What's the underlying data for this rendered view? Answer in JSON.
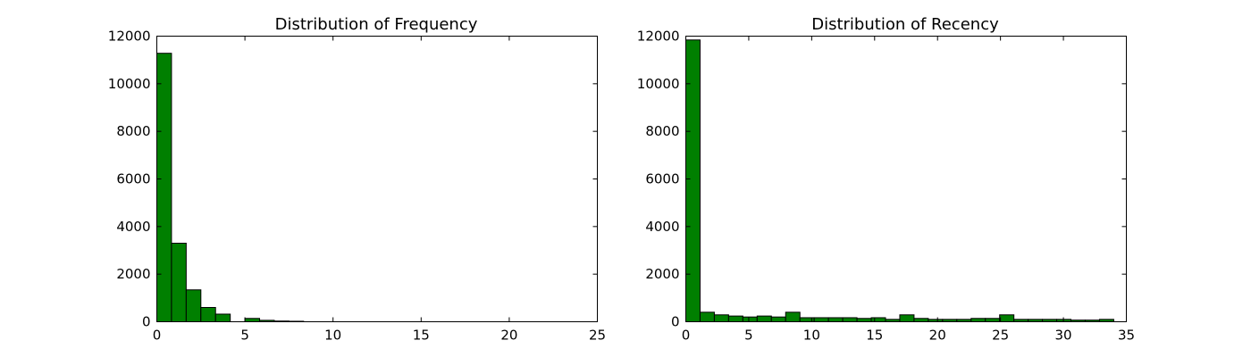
{
  "chart_data": [
    {
      "type": "bar",
      "title": "Distribution of Frequency",
      "xlabel": "",
      "ylabel": "",
      "xlim": [
        0,
        25
      ],
      "ylim": [
        0,
        12000
      ],
      "xticks": [
        0,
        5,
        10,
        15,
        20,
        25
      ],
      "yticks": [
        0,
        2000,
        4000,
        6000,
        8000,
        10000,
        12000
      ],
      "grid": false,
      "bar_color": "#007f00",
      "bins": [
        {
          "x0": 0.0,
          "x1": 0.833,
          "value": 11280
        },
        {
          "x0": 0.833,
          "x1": 1.667,
          "value": 3300
        },
        {
          "x0": 1.667,
          "x1": 2.5,
          "value": 1340
        },
        {
          "x0": 2.5,
          "x1": 3.333,
          "value": 600
        },
        {
          "x0": 3.333,
          "x1": 4.167,
          "value": 320
        },
        {
          "x0": 4.167,
          "x1": 5.0,
          "value": 0
        },
        {
          "x0": 5.0,
          "x1": 5.833,
          "value": 140
        },
        {
          "x0": 5.833,
          "x1": 6.667,
          "value": 60
        },
        {
          "x0": 6.667,
          "x1": 7.5,
          "value": 30
        },
        {
          "x0": 7.5,
          "x1": 8.333,
          "value": 20
        }
      ]
    },
    {
      "type": "bar",
      "title": "Distribution of Recency",
      "xlabel": "",
      "ylabel": "",
      "xlim": [
        0,
        35
      ],
      "ylim": [
        0,
        12000
      ],
      "xticks": [
        0,
        5,
        10,
        15,
        20,
        25,
        30,
        35
      ],
      "yticks": [
        0,
        2000,
        4000,
        6000,
        8000,
        10000,
        12000
      ],
      "grid": false,
      "bar_color": "#007f00",
      "bins": [
        {
          "x0": 0.0,
          "x1": 1.133,
          "value": 11840
        },
        {
          "x0": 1.133,
          "x1": 2.267,
          "value": 400
        },
        {
          "x0": 2.267,
          "x1": 3.4,
          "value": 290
        },
        {
          "x0": 3.4,
          "x1": 4.533,
          "value": 240
        },
        {
          "x0": 4.533,
          "x1": 5.667,
          "value": 200
        },
        {
          "x0": 5.667,
          "x1": 6.8,
          "value": 240
        },
        {
          "x0": 6.8,
          "x1": 7.933,
          "value": 200
        },
        {
          "x0": 7.933,
          "x1": 9.067,
          "value": 400
        },
        {
          "x0": 9.067,
          "x1": 10.2,
          "value": 170
        },
        {
          "x0": 10.2,
          "x1": 11.333,
          "value": 170
        },
        {
          "x0": 11.333,
          "x1": 12.467,
          "value": 170
        },
        {
          "x0": 12.467,
          "x1": 13.6,
          "value": 170
        },
        {
          "x0": 13.6,
          "x1": 14.733,
          "value": 140
        },
        {
          "x0": 14.733,
          "x1": 15.867,
          "value": 170
        },
        {
          "x0": 15.867,
          "x1": 17.0,
          "value": 100
        },
        {
          "x0": 17.0,
          "x1": 18.133,
          "value": 290
        },
        {
          "x0": 18.133,
          "x1": 19.267,
          "value": 140
        },
        {
          "x0": 19.267,
          "x1": 20.4,
          "value": 100
        },
        {
          "x0": 20.4,
          "x1": 21.533,
          "value": 100
        },
        {
          "x0": 21.533,
          "x1": 22.667,
          "value": 100
        },
        {
          "x0": 22.667,
          "x1": 23.8,
          "value": 140
        },
        {
          "x0": 23.8,
          "x1": 24.933,
          "value": 140
        },
        {
          "x0": 24.933,
          "x1": 26.067,
          "value": 290
        },
        {
          "x0": 26.067,
          "x1": 27.2,
          "value": 100
        },
        {
          "x0": 27.2,
          "x1": 28.333,
          "value": 100
        },
        {
          "x0": 28.333,
          "x1": 29.467,
          "value": 100
        },
        {
          "x0": 29.467,
          "x1": 30.6,
          "value": 100
        },
        {
          "x0": 30.6,
          "x1": 31.733,
          "value": 70
        },
        {
          "x0": 31.733,
          "x1": 32.867,
          "value": 70
        },
        {
          "x0": 32.867,
          "x1": 34.0,
          "value": 100
        }
      ]
    }
  ]
}
